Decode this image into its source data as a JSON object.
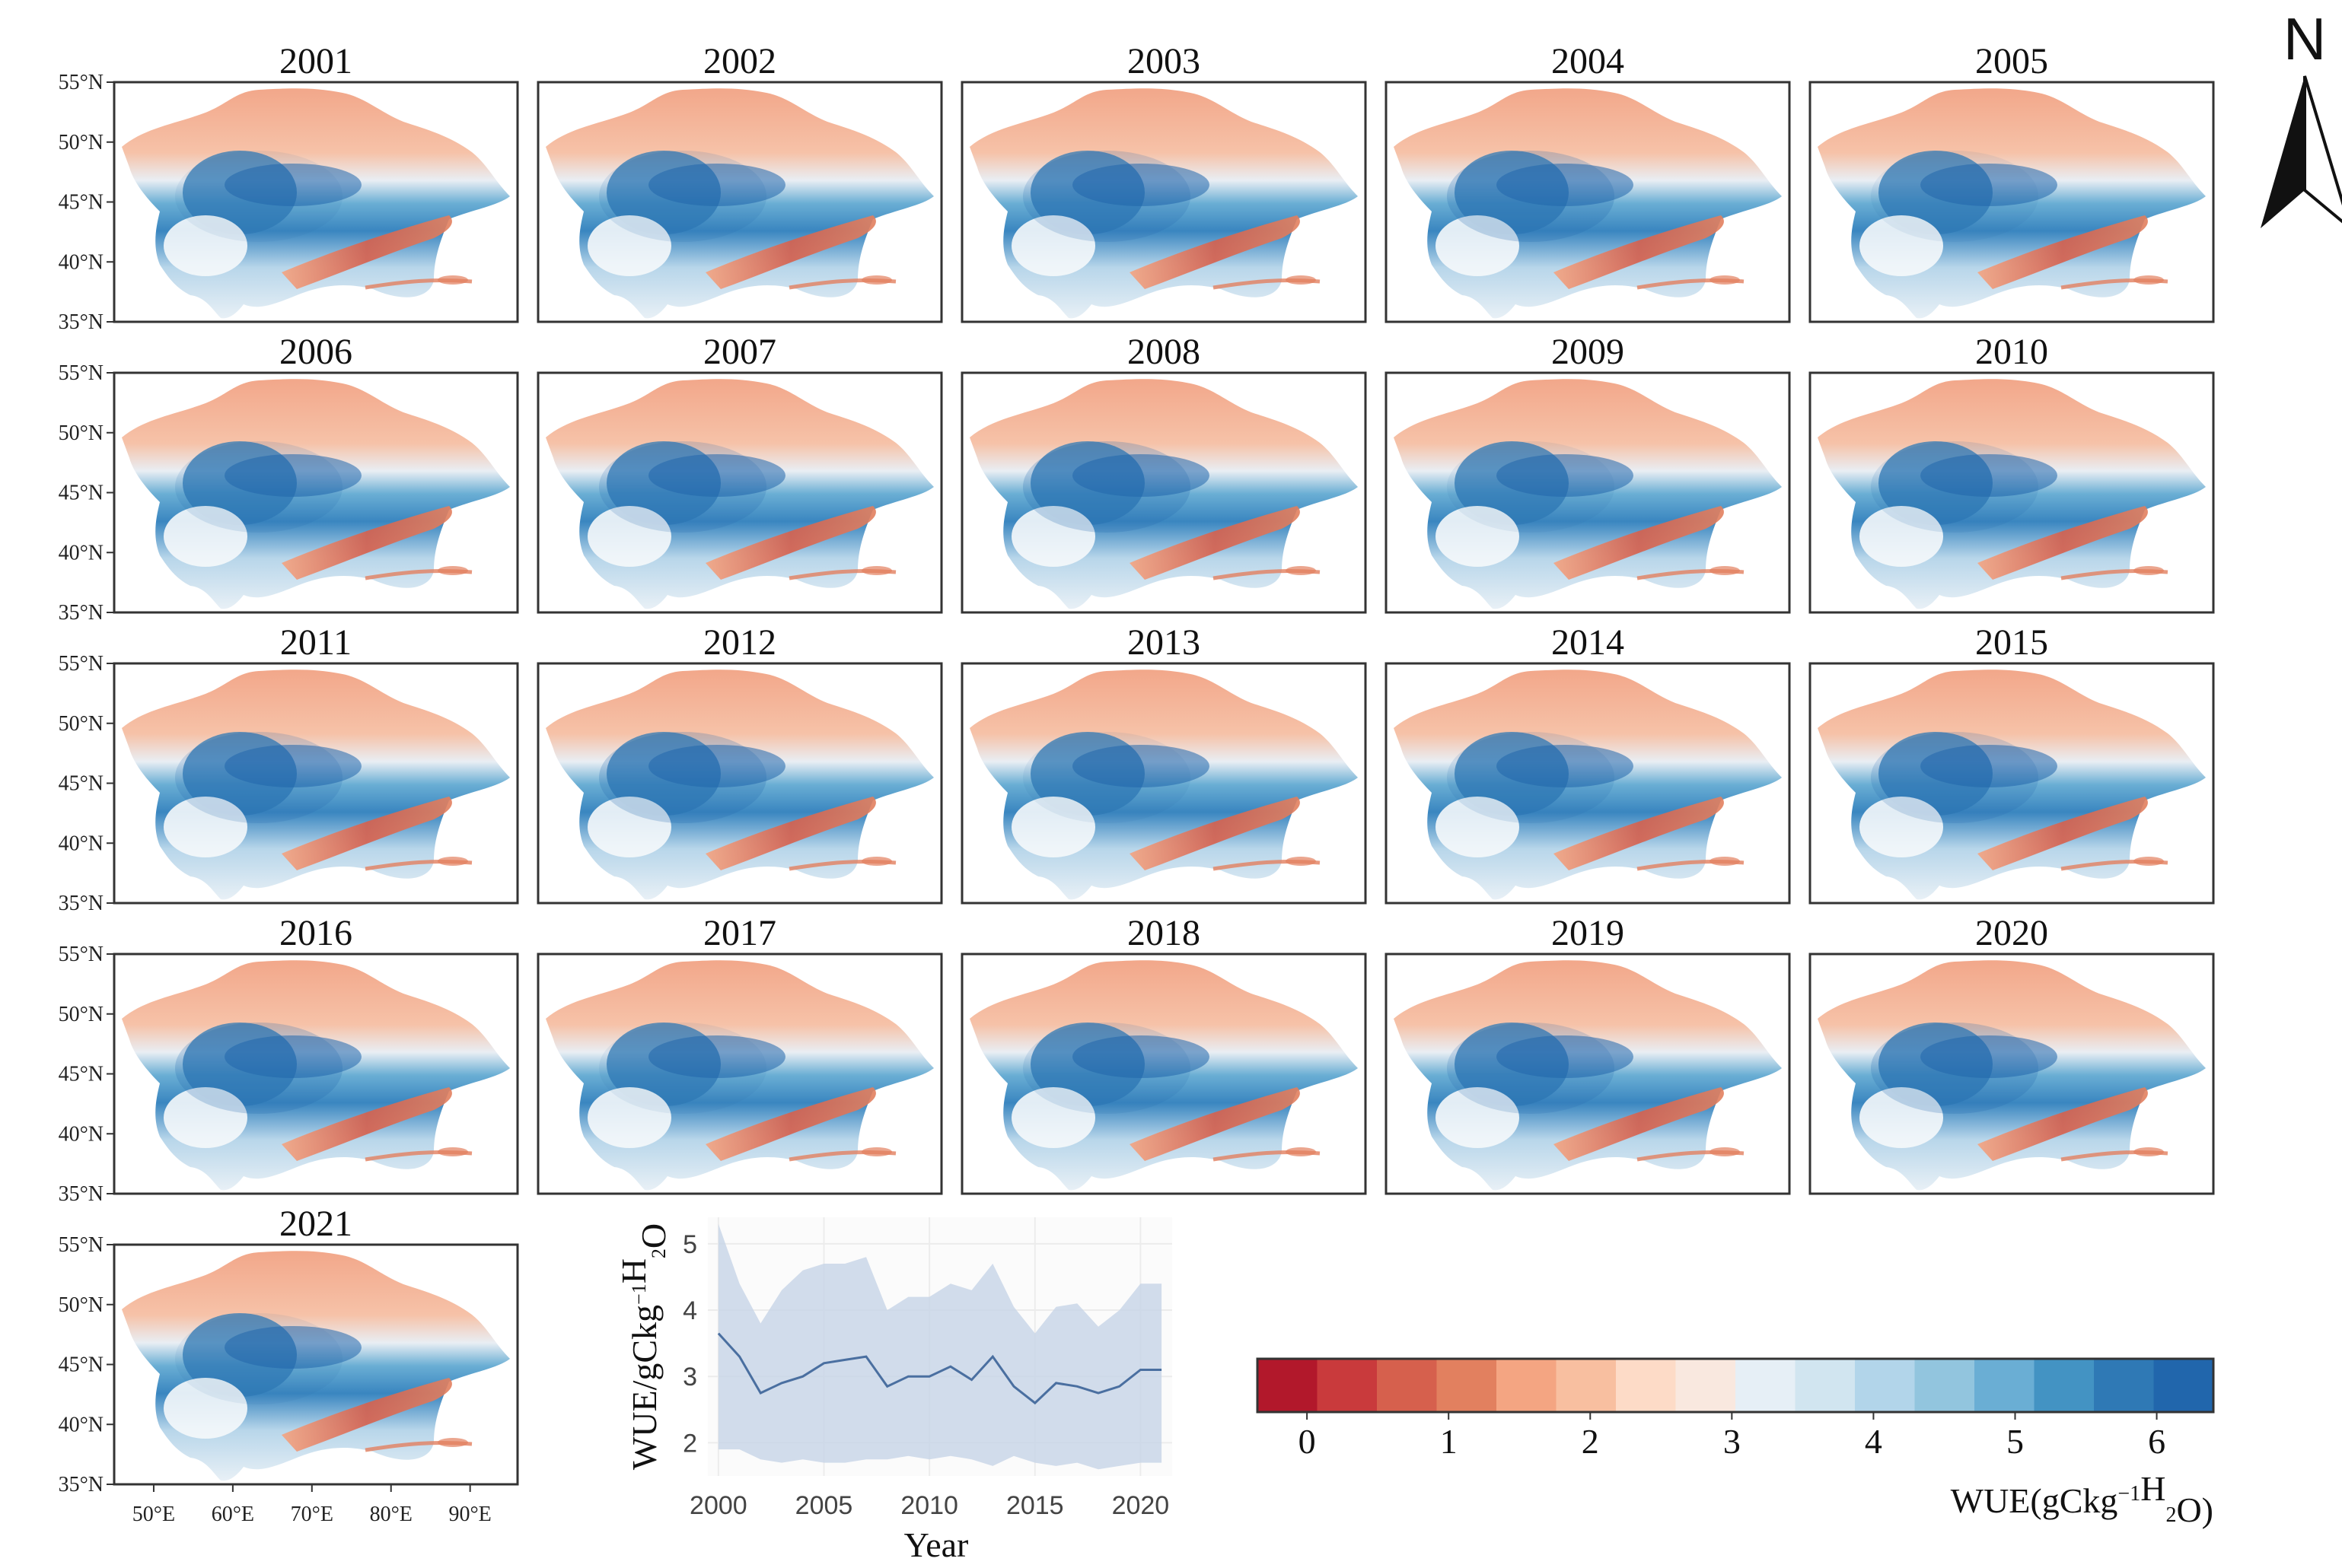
{
  "chart_data": [
    {
      "type": "heatmap",
      "description_panels": "Annual WUE maps of Central Asia",
      "panel_titles": [
        "2001",
        "2002",
        "2003",
        "2004",
        "2005",
        "2006",
        "2007",
        "2008",
        "2009",
        "2010",
        "2011",
        "2012",
        "2013",
        "2014",
        "2015",
        "2016",
        "2017",
        "2018",
        "2019",
        "2020",
        "2021"
      ],
      "y_tick_labels": [
        "55°N",
        "50°N",
        "45°N",
        "40°N",
        "35°N"
      ],
      "x_tick_labels": [
        "50°E",
        "60°E",
        "70°E",
        "80°E",
        "90°E"
      ],
      "ylim": [
        35,
        55
      ],
      "xlim": [
        45,
        96
      ],
      "colorbar": {
        "label": "WUE(gCkg⁻¹H₂O)",
        "label_main": "WUE(gCkg",
        "label_sup": "−1",
        "label_mid": "H",
        "label_sub": "2",
        "label_end": "O)",
        "ticks": [
          "0",
          "1",
          "2",
          "3",
          "4",
          "5",
          "6"
        ],
        "range": [
          -0.35,
          6.4
        ],
        "colors": [
          "#b2182b",
          "#c93a3c",
          "#d6604d",
          "#e2805f",
          "#f4a582",
          "#f8bfa0",
          "#fddbc7",
          "#f9e8df",
          "#e6eff6",
          "#d1e5f0",
          "#b2d5ea",
          "#92c5de",
          "#6aaed4",
          "#4393c3",
          "#2f79b5",
          "#2166ac"
        ]
      }
    },
    {
      "type": "line",
      "x": [
        2000,
        2001,
        2002,
        2003,
        2004,
        2005,
        2006,
        2007,
        2008,
        2009,
        2010,
        2011,
        2012,
        2013,
        2014,
        2015,
        2016,
        2017,
        2018,
        2019,
        2020,
        2021
      ],
      "series": [
        {
          "name": "mean",
          "values": [
            3.65,
            3.3,
            2.75,
            2.9,
            3.0,
            3.2,
            3.25,
            3.3,
            2.85,
            3.0,
            3.0,
            3.15,
            2.95,
            3.3,
            2.85,
            2.6,
            2.9,
            2.85,
            2.75,
            2.85,
            3.1,
            3.1
          ]
        },
        {
          "name": "upper",
          "values": [
            5.3,
            4.4,
            3.8,
            4.3,
            4.6,
            4.7,
            4.7,
            4.8,
            4.0,
            4.2,
            4.2,
            4.4,
            4.3,
            4.7,
            4.05,
            3.65,
            4.05,
            4.1,
            3.75,
            4.0,
            4.4,
            4.4
          ]
        },
        {
          "name": "lower",
          "values": [
            1.9,
            1.9,
            1.75,
            1.7,
            1.75,
            1.7,
            1.7,
            1.75,
            1.75,
            1.8,
            1.75,
            1.8,
            1.75,
            1.65,
            1.8,
            1.7,
            1.65,
            1.7,
            1.6,
            1.65,
            1.7,
            1.7
          ]
        }
      ],
      "xticks": [
        "2000",
        "2005",
        "2010",
        "2015",
        "2020"
      ],
      "yticks": [
        "2",
        "3",
        "4",
        "5"
      ],
      "xlim": [
        1999.5,
        2021.5
      ],
      "ylim": [
        1.5,
        5.4
      ],
      "xlabel": "Year",
      "ylabel": "WUE/gCkg⁻¹H₂O",
      "ylabel_main": "WUE/gCkg",
      "ylabel_sup": "−1",
      "ylabel_mid": "H",
      "ylabel_sub": "2",
      "ylabel_end": "O",
      "colors": {
        "line": "#4a6fa0",
        "band": "#c9d6e8",
        "grid": "#ececec"
      }
    }
  ],
  "north_arrow": {
    "label": "N"
  },
  "colors": {
    "red": "#b2182b",
    "white": "#f7f7f7",
    "blue": "#2166ac",
    "frame": "#333333"
  }
}
